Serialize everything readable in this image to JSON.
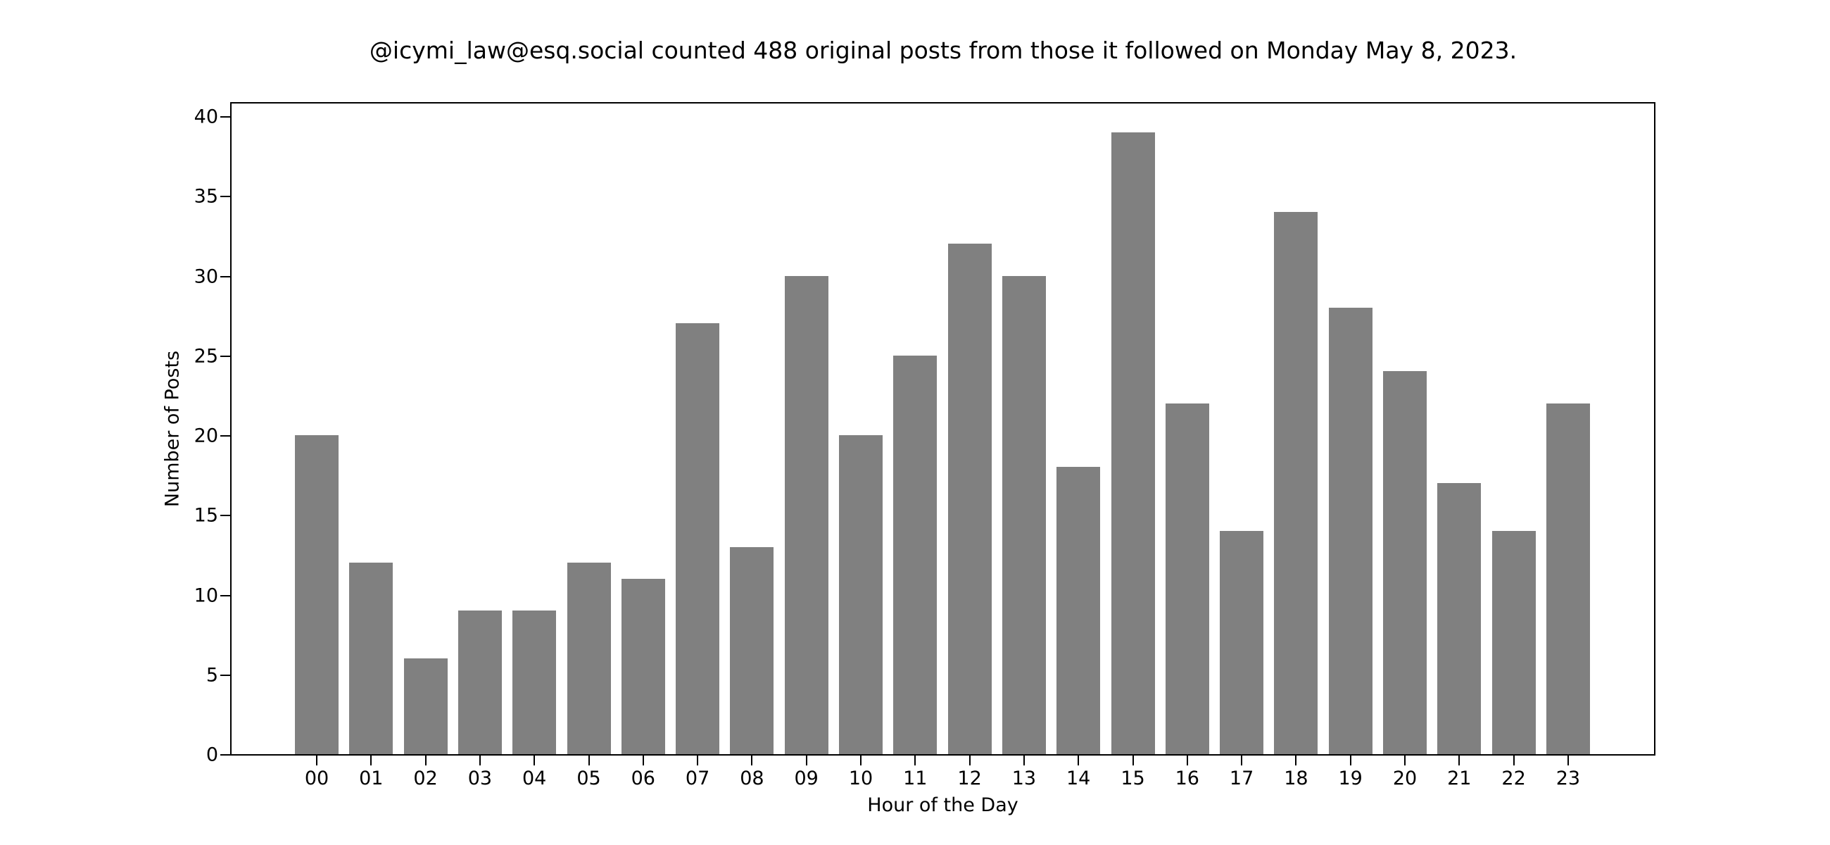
{
  "chart_data": {
    "type": "bar",
    "title": "@icymi_law@esq.social counted 488 original posts from those it followed on Monday May 8, 2023.",
    "xlabel": "Hour of the Day",
    "ylabel": "Number of Posts",
    "categories": [
      "00",
      "01",
      "02",
      "03",
      "04",
      "05",
      "06",
      "07",
      "08",
      "09",
      "10",
      "11",
      "12",
      "13",
      "14",
      "15",
      "16",
      "17",
      "18",
      "19",
      "20",
      "21",
      "22",
      "23"
    ],
    "values": [
      20,
      12,
      6,
      9,
      9,
      12,
      11,
      27,
      13,
      30,
      20,
      25,
      32,
      30,
      18,
      39,
      22,
      14,
      34,
      28,
      24,
      17,
      14,
      22
    ],
    "ylim": [
      0,
      41
    ],
    "yticks": [
      0,
      5,
      10,
      15,
      20,
      25,
      30,
      35,
      40
    ],
    "grid": false,
    "legend": null,
    "bar_color": "#808080"
  }
}
